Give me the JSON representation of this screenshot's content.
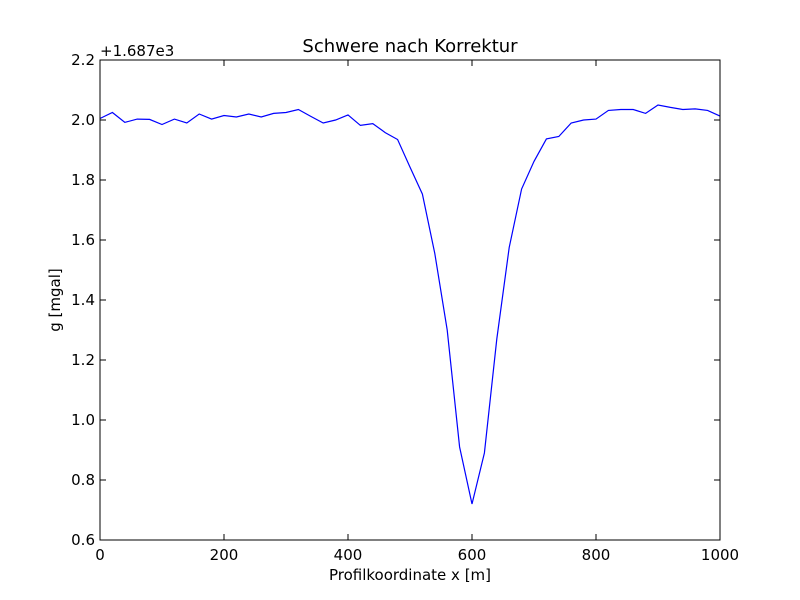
{
  "chart_data": {
    "type": "line",
    "title": "Schwere nach Korrektur",
    "xlabel": "Profilkoordinate x [m]",
    "ylabel": "g [mgal]",
    "offset_text": "+1.687e3",
    "xlim": [
      0,
      1000
    ],
    "ylim": [
      0.6,
      2.2
    ],
    "xticks": [
      0,
      200,
      400,
      600,
      800,
      1000
    ],
    "xtick_labels": [
      "0",
      "200",
      "400",
      "600",
      "800",
      "1000"
    ],
    "yticks": [
      0.6,
      0.8,
      1.0,
      1.2,
      1.4,
      1.6,
      1.8,
      2.0,
      2.2
    ],
    "ytick_labels": [
      "0.6",
      "0.8",
      "1.0",
      "1.2",
      "1.4",
      "1.6",
      "1.8",
      "2.0",
      "2.2"
    ],
    "grid": false,
    "series": [
      {
        "color": "#0000ff",
        "x": [
          0,
          20,
          40,
          60,
          80,
          100,
          120,
          140,
          160,
          180,
          200,
          220,
          240,
          260,
          280,
          300,
          320,
          340,
          360,
          380,
          400,
          420,
          440,
          460,
          480,
          500,
          520,
          540,
          560,
          580,
          600,
          620,
          640,
          660,
          680,
          700,
          720,
          740,
          760,
          780,
          800,
          820,
          840,
          860,
          880,
          900,
          920,
          940,
          960,
          980,
          1000
        ],
        "y": [
          2.005,
          2.025,
          1.992,
          2.003,
          2.002,
          1.985,
          2.003,
          1.99,
          2.02,
          2.003,
          2.015,
          2.01,
          2.02,
          2.01,
          2.022,
          2.025,
          2.035,
          2.012,
          1.99,
          2.0,
          2.017,
          1.982,
          1.988,
          1.958,
          1.935,
          1.843,
          1.753,
          1.555,
          1.3,
          0.91,
          0.72,
          0.89,
          1.27,
          1.575,
          1.77,
          1.862,
          1.937,
          1.945,
          1.99,
          2.0,
          2.003,
          2.032,
          2.035,
          2.035,
          2.022,
          2.05,
          2.042,
          2.035,
          2.037,
          2.032,
          2.013
        ]
      }
    ]
  }
}
